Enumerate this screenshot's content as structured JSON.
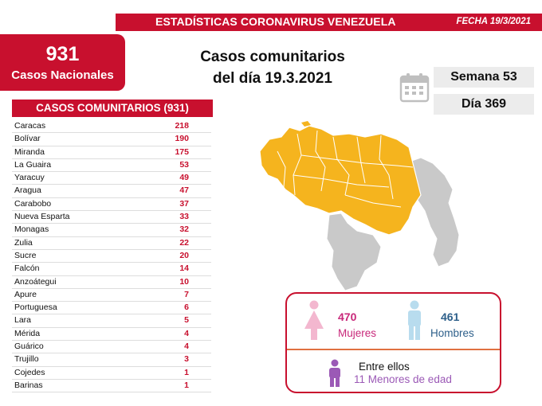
{
  "header": {
    "title": "ESTADÍSTICAS CORONAVIRUS VENEZUELA",
    "date": "FECHA 19/3/2021"
  },
  "national": {
    "total": "931",
    "label": "Casos Nacionales"
  },
  "headline": {
    "line1": "Casos comunitarios",
    "line2": "del día 19.3.2021"
  },
  "calendar": {
    "week": "Semana 53",
    "day": "Día 369",
    "icon": "calendar-icon"
  },
  "table": {
    "header": "CASOS COMUNITARIOS (931)",
    "rows": [
      {
        "state": "Caracas",
        "cases": "218"
      },
      {
        "state": "Bolívar",
        "cases": "190"
      },
      {
        "state": "Miranda",
        "cases": "175"
      },
      {
        "state": "La Guaira",
        "cases": "53"
      },
      {
        "state": "Yaracuy",
        "cases": "49"
      },
      {
        "state": "Aragua",
        "cases": "47"
      },
      {
        "state": "Carabobo",
        "cases": "37"
      },
      {
        "state": "Nueva Esparta",
        "cases": "33"
      },
      {
        "state": "Monagas",
        "cases": "32"
      },
      {
        "state": "Zulia",
        "cases": "22"
      },
      {
        "state": "Sucre",
        "cases": "20"
      },
      {
        "state": "Falcón",
        "cases": "14"
      },
      {
        "state": "Anzoátegui",
        "cases": "10"
      },
      {
        "state": "Apure",
        "cases": "7"
      },
      {
        "state": "Portuguesa",
        "cases": "6"
      },
      {
        "state": "Lara",
        "cases": "5"
      },
      {
        "state": "Mérida",
        "cases": "4"
      },
      {
        "state": "Guárico",
        "cases": "4"
      },
      {
        "state": "Trujillo",
        "cases": "3"
      },
      {
        "state": "Cojedes",
        "cases": "1"
      },
      {
        "state": "Barinas",
        "cases": "1"
      }
    ]
  },
  "gender": {
    "women_count": "470",
    "women_label": "Mujeres",
    "men_count": "461",
    "men_label": "Hombres",
    "kids_heading": "Entre ellos",
    "kids_label": "11 Menores de edad"
  },
  "colors": {
    "brand_red": "#c8102e",
    "map_affected": "#f5b41e",
    "map_unaffected": "#c9c9c9",
    "women": "#c8287a",
    "men": "#2d5f8a",
    "kids": "#9b59b6"
  }
}
